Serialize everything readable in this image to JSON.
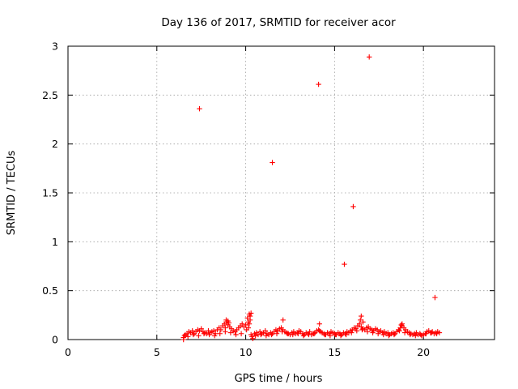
{
  "chart_data": {
    "type": "scatter",
    "title": "Day 136 of 2017, SRMTID for receiver acor",
    "xlabel": "GPS time / hours",
    "ylabel": "SRMTID / TECUs",
    "xlim": [
      0,
      24
    ],
    "ylim": [
      0,
      3
    ],
    "xticks": [
      0,
      5,
      10,
      15,
      20
    ],
    "xtick_labels": [
      "0",
      "5",
      "10",
      "15",
      "20"
    ],
    "yticks": [
      0,
      0.5,
      1,
      1.5,
      2,
      2.5,
      3
    ],
    "ytick_labels": [
      "0",
      "0.5",
      "1",
      "1.5",
      "2",
      "2.5",
      "3"
    ],
    "grid": true,
    "marker": "+",
    "color": "#ff0000",
    "series": [
      {
        "name": "SRMTID",
        "x": [
          7.4,
          11.5,
          14.1,
          15.55,
          16.05,
          16.95,
          20.65,
          12.1,
          14.15,
          16.5,
          6.5,
          6.6,
          6.7,
          6.8,
          6.9,
          7.0,
          7.1,
          7.2,
          7.3,
          7.4,
          7.5,
          7.6,
          7.7,
          7.8,
          7.9,
          8.0,
          8.1,
          8.2,
          8.3,
          8.4,
          8.5,
          8.6,
          8.7,
          8.8,
          8.9,
          9.0,
          9.1,
          9.2,
          9.3,
          9.4,
          9.5,
          9.6,
          9.7,
          9.8,
          9.9,
          10.0,
          10.1,
          10.2,
          10.3,
          10.5,
          10.6,
          10.7,
          10.8,
          10.9,
          11.0,
          11.1,
          11.2,
          11.3,
          11.4,
          11.5,
          11.6,
          11.7,
          11.8,
          11.9,
          12.0,
          12.1,
          12.2,
          12.3,
          12.4,
          12.5,
          12.6,
          12.7,
          12.8,
          12.9,
          13.0,
          13.1,
          13.2,
          13.3,
          13.4,
          13.5,
          13.6,
          13.7,
          13.8,
          13.9,
          14.0,
          14.1,
          14.2,
          14.3,
          14.4,
          14.5,
          14.6,
          14.7,
          14.8,
          14.9,
          15.0,
          15.1,
          15.2,
          15.3,
          15.4,
          15.5,
          15.6,
          15.7,
          15.8,
          15.9,
          16.0,
          16.1,
          16.2,
          16.3,
          16.4,
          16.5,
          16.6,
          16.7,
          16.8,
          16.9,
          17.0,
          17.1,
          17.2,
          17.3,
          17.4,
          17.5,
          17.6,
          17.7,
          17.8,
          17.9,
          18.0,
          18.1,
          18.2,
          18.3,
          18.4,
          18.5,
          18.6,
          18.7,
          18.8,
          18.9,
          19.0,
          19.1,
          19.2,
          19.3,
          19.4,
          19.5,
          19.6,
          19.7,
          19.8,
          19.9,
          20.0,
          20.1,
          20.2,
          20.3,
          20.4,
          20.5,
          20.6,
          20.7,
          20.8,
          20.9,
          6.55,
          6.75,
          7.05,
          7.35,
          7.65,
          7.95,
          8.25,
          8.55,
          8.85,
          9.15,
          9.45,
          9.75,
          10.05,
          10.15,
          10.25,
          10.35,
          10.15,
          10.2,
          10.25,
          10.3,
          10.55,
          10.85,
          11.15,
          11.45,
          11.75,
          12.05,
          12.35,
          12.65,
          12.95,
          13.25,
          13.55,
          13.85,
          14.15,
          14.45,
          14.75,
          15.05,
          15.35,
          15.65,
          15.95,
          16.25,
          16.55,
          16.85,
          17.15,
          17.45,
          17.75,
          18.05,
          18.35,
          18.65,
          18.95,
          19.25,
          19.55,
          19.85,
          20.15,
          20.45,
          20.75,
          6.5,
          10.4,
          8.9,
          9.05,
          8.85,
          9.0,
          16.45,
          16.6,
          18.75,
          18.8
        ],
        "y": [
          2.36,
          1.81,
          2.61,
          0.77,
          1.36,
          2.89,
          0.43,
          0.2,
          0.16,
          0.24,
          0.02,
          0.05,
          0.06,
          0.08,
          0.07,
          0.09,
          0.06,
          0.08,
          0.1,
          0.09,
          0.11,
          0.08,
          0.07,
          0.06,
          0.09,
          0.07,
          0.08,
          0.09,
          0.06,
          0.1,
          0.12,
          0.1,
          0.14,
          0.16,
          0.18,
          0.15,
          0.13,
          0.11,
          0.09,
          0.08,
          0.1,
          0.12,
          0.14,
          0.16,
          0.13,
          0.15,
          0.22,
          0.26,
          0.05,
          0.06,
          0.07,
          0.05,
          0.08,
          0.06,
          0.07,
          0.09,
          0.06,
          0.05,
          0.07,
          0.06,
          0.08,
          0.1,
          0.09,
          0.11,
          0.12,
          0.1,
          0.08,
          0.07,
          0.06,
          0.05,
          0.07,
          0.08,
          0.06,
          0.07,
          0.09,
          0.08,
          0.06,
          0.05,
          0.07,
          0.06,
          0.08,
          0.05,
          0.06,
          0.07,
          0.09,
          0.1,
          0.08,
          0.07,
          0.06,
          0.05,
          0.07,
          0.06,
          0.08,
          0.07,
          0.06,
          0.05,
          0.07,
          0.06,
          0.05,
          0.07,
          0.06,
          0.08,
          0.07,
          0.09,
          0.1,
          0.12,
          0.11,
          0.14,
          0.16,
          0.13,
          0.11,
          0.1,
          0.12,
          0.13,
          0.11,
          0.1,
          0.09,
          0.11,
          0.1,
          0.08,
          0.09,
          0.07,
          0.08,
          0.06,
          0.07,
          0.05,
          0.06,
          0.07,
          0.06,
          0.08,
          0.1,
          0.12,
          0.14,
          0.12,
          0.1,
          0.08,
          0.07,
          0.06,
          0.05,
          0.06,
          0.07,
          0.05,
          0.06,
          0.04,
          0.05,
          0.06,
          0.08,
          0.09,
          0.07,
          0.08,
          0.06,
          0.07,
          0.08,
          0.07,
          0.04,
          0.03,
          0.05,
          0.04,
          0.06,
          0.05,
          0.04,
          0.06,
          0.08,
          0.07,
          0.05,
          0.06,
          0.1,
          0.18,
          0.2,
          0.03,
          0.12,
          0.16,
          0.24,
          0.27,
          0.04,
          0.05,
          0.04,
          0.05,
          0.06,
          0.08,
          0.06,
          0.05,
          0.06,
          0.04,
          0.05,
          0.06,
          0.09,
          0.05,
          0.04,
          0.05,
          0.04,
          0.05,
          0.07,
          0.09,
          0.1,
          0.08,
          0.07,
          0.06,
          0.05,
          0.04,
          0.05,
          0.09,
          0.07,
          0.05,
          0.04,
          0.05,
          0.06,
          0.07,
          0.06,
          0.0,
          0.01,
          0.2,
          0.17,
          0.12,
          0.19,
          0.2,
          0.18,
          0.15,
          0.16
        ]
      }
    ]
  }
}
